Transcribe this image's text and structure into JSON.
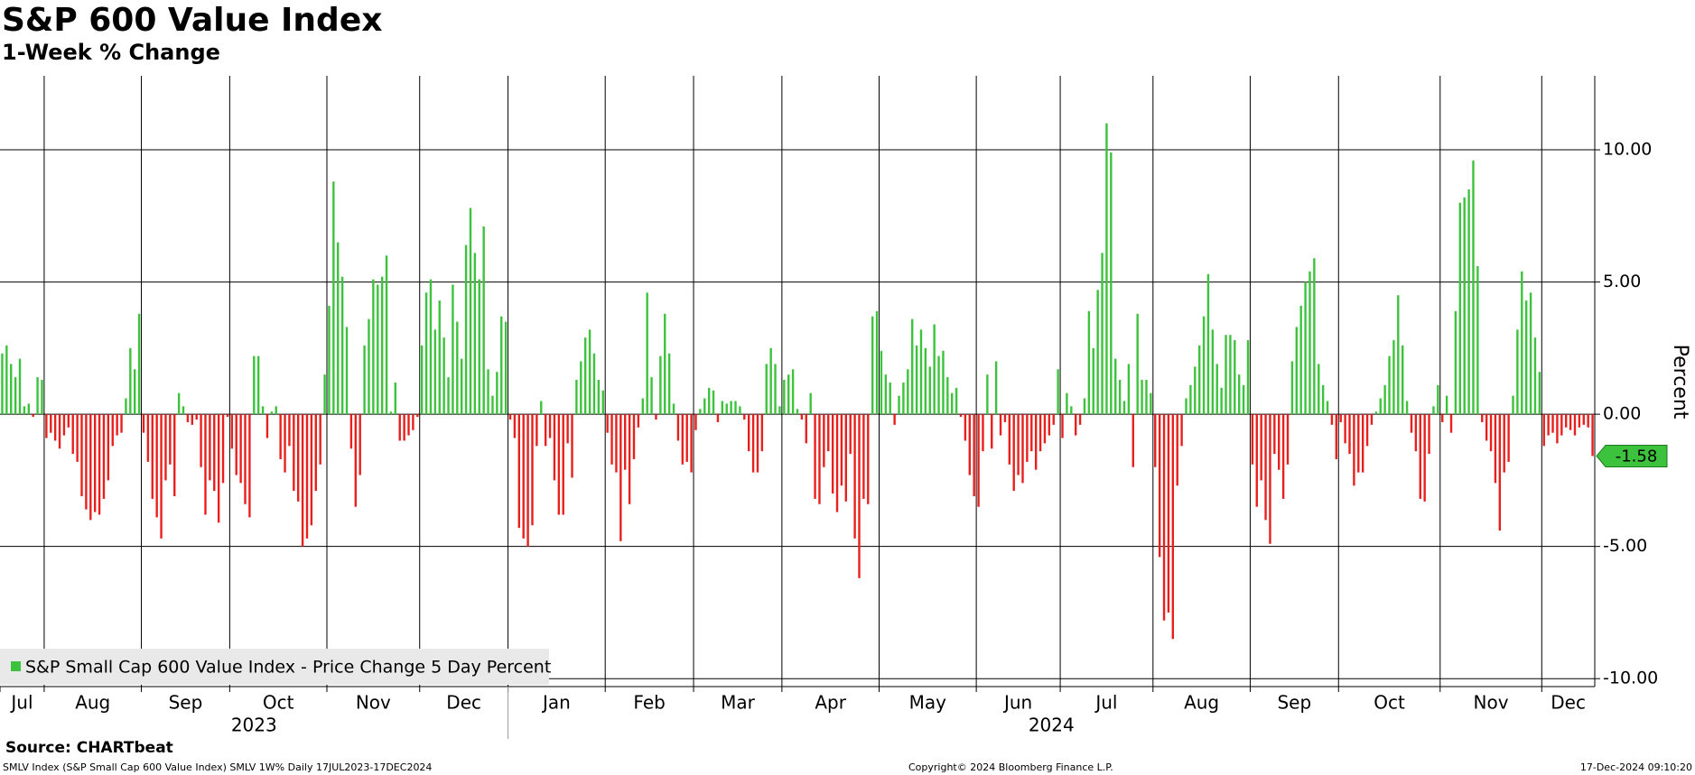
{
  "chart_data": {
    "type": "bar",
    "title": "S&P 600 Value Index",
    "subtitle": "1-Week % Change",
    "y_label": "Percent",
    "legend": "S&P Small Cap 600 Value Index - Price Change 5 Day Percent",
    "legend_position": "lower left",
    "source": "Source: CHARTbeat",
    "footer_left": "SMLV Index (S&P Small Cap 600 Value Index) SMLV 1W% Daily 17JUL2023-17DEC2024",
    "footer_center": "Copyright© 2024 Bloomberg Finance L.P.",
    "footer_right": "17-Dec-2024 09:10:20",
    "positive_color": "#3cc23c",
    "negative_color": "#e8201d",
    "grid": true,
    "last_value_label": "-1.58",
    "xlim": [
      0,
      361
    ],
    "xticks": [
      {
        "value": 0,
        "label": "Jul"
      },
      {
        "value": 10,
        "label": "Aug"
      },
      {
        "value": 32,
        "label": "Sep"
      },
      {
        "value": 52,
        "label": "Oct"
      },
      {
        "value": 74,
        "label": "Nov"
      },
      {
        "value": 95,
        "label": "Dec"
      },
      {
        "value": 115,
        "label": "Jan"
      },
      {
        "value": 137,
        "label": "Feb"
      },
      {
        "value": 157,
        "label": "Mar"
      },
      {
        "value": 177,
        "label": "Apr"
      },
      {
        "value": 199,
        "label": "May"
      },
      {
        "value": 221,
        "label": "Jun"
      },
      {
        "value": 240,
        "label": "Jul"
      },
      {
        "value": 261,
        "label": "Aug"
      },
      {
        "value": 283,
        "label": "Sep"
      },
      {
        "value": 303,
        "label": "Oct"
      },
      {
        "value": 326,
        "label": "Nov"
      },
      {
        "value": 349,
        "label": "Dec"
      }
    ],
    "years": [
      {
        "value": 0,
        "label": "2023"
      },
      {
        "value": 115,
        "label": "2024"
      }
    ],
    "ylim": [
      -10.3,
      12.8
    ],
    "yticks": [
      {
        "value": 10,
        "label": "10.00"
      },
      {
        "value": 5,
        "label": "5.00"
      },
      {
        "value": 0,
        "label": "0.00"
      },
      {
        "value": -5,
        "label": "-5.00"
      },
      {
        "value": -10,
        "label": "-10.00"
      }
    ],
    "values": [
      2.3,
      2.6,
      1.9,
      1.4,
      2.1,
      0.3,
      0.4,
      -0.1,
      1.4,
      1.3,
      -0.9,
      -0.7,
      -1,
      -1.3,
      -0.8,
      -0.5,
      -1.5,
      -1.8,
      -3.1,
      -3.6,
      -4,
      -3.7,
      -3.8,
      -3.2,
      -2.5,
      -1.2,
      -0.8,
      -0.7,
      0.6,
      2.5,
      1.7,
      3.8,
      -0.7,
      -1.8,
      -3.2,
      -3.9,
      -4.7,
      -2.5,
      -1.9,
      -3.1,
      0.8,
      0.3,
      -0.3,
      -0.4,
      -0.2,
      -2,
      -3.8,
      -2.5,
      -2.9,
      -4.1,
      -2.6,
      -0.1,
      -1.3,
      -2.3,
      -2.6,
      -3.4,
      -3.9,
      2.2,
      2.2,
      0.3,
      -0.9,
      0.1,
      0.3,
      -1.7,
      -2.2,
      -1.2,
      -2.9,
      -3.3,
      -5,
      -4.7,
      -4.2,
      -2.9,
      -1.9,
      1.5,
      4.1,
      8.8,
      6.5,
      5.2,
      3.3,
      -1.3,
      -3.5,
      -2.3,
      2.6,
      3.6,
      5.1,
      4.9,
      5.2,
      6,
      0.1,
      1.2,
      -1,
      -1,
      -0.8,
      -0.6,
      -0.1,
      2.6,
      4.6,
      5.1,
      3.2,
      4.3,
      2.9,
      1.4,
      4.9,
      3.5,
      2.1,
      6.4,
      7.8,
      6.1,
      5.1,
      7.1,
      1.7,
      0.7,
      1.6,
      3.7,
      3.5,
      -0.2,
      -0.9,
      -4.3,
      -4.7,
      -5,
      -4.2,
      -1.2,
      0.5,
      -1.2,
      -0.9,
      -2.5,
      -3.8,
      -3.8,
      -1.1,
      -2.4,
      1.3,
      2,
      2.9,
      3.2,
      2.3,
      1.3,
      0.9,
      -0.7,
      -1.9,
      -2.2,
      -4.8,
      -2.1,
      -3.4,
      -1.7,
      -0.5,
      0.6,
      4.6,
      1.4,
      -0.2,
      2.2,
      3.8,
      2.3,
      0.4,
      -1,
      -1.9,
      -1.8,
      -2.2,
      -0.6,
      0.2,
      0.6,
      1,
      0.9,
      -0.3,
      0.5,
      0.4,
      0.5,
      0.5,
      0.3,
      -0.2,
      -1.4,
      -2.2,
      -2.2,
      -1.4,
      1.9,
      2.5,
      1.9,
      0.3,
      1.3,
      1.5,
      1.7,
      0.2,
      -0.2,
      -1.1,
      0.8,
      -3.2,
      -3.4,
      -2,
      -1.4,
      -3,
      -3.7,
      -2.7,
      -3.3,
      -1.5,
      -4.7,
      -6.2,
      -3.2,
      -3.4,
      3.7,
      3.9,
      2.4,
      1.5,
      1.2,
      -0.4,
      0.7,
      1.2,
      1.7,
      3.6,
      2.6,
      3.2,
      2.5,
      1.8,
      3.4,
      2.2,
      2.4,
      1.4,
      0.8,
      1,
      -0.1,
      -1,
      -2.3,
      -3.1,
      -3.5,
      -1.4,
      1.5,
      -1.3,
      2,
      -0.8,
      -0.3,
      -1.9,
      -2.9,
      -2.3,
      -2.6,
      -1.8,
      -1.4,
      -2.1,
      -1.4,
      -1.1,
      -0.8,
      -0.4,
      1.7,
      -0.9,
      0.8,
      0.3,
      -0.8,
      -0.4,
      0.6,
      3.9,
      2.5,
      4.7,
      6.1,
      11,
      9.9,
      2.1,
      1.3,
      0.5,
      1.9,
      -2,
      3.8,
      1.3,
      1.3,
      0.8,
      -2,
      -5.4,
      -7.8,
      -7.5,
      -8.5,
      -2.7,
      -1.2,
      0.6,
      1.1,
      1.8,
      2.6,
      3.7,
      5.3,
      3.2,
      1.9,
      1,
      3,
      3,
      2.8,
      1.5,
      1.1,
      2.8,
      -1.9,
      -3.5,
      -2.5,
      -4,
      -4.9,
      -1.5,
      -2.1,
      -3.2,
      -1.9,
      2,
      3.3,
      4.1,
      5,
      5.4,
      5.9,
      1.9,
      1.1,
      0.5,
      -0.4,
      -1.7,
      -0.3,
      -1.1,
      -1.5,
      -2.7,
      -2.2,
      -2.2,
      -1.2,
      -0.4,
      0.1,
      0.6,
      1.1,
      2.2,
      2.8,
      4.5,
      2.6,
      0.5,
      -0.7,
      -1.4,
      -3.2,
      -3.3,
      -1.5,
      0.3,
      1.1,
      -0.3,
      0.7,
      -0.7,
      3.9,
      8,
      8.2,
      8.5,
      9.6,
      5.6,
      -0.3,
      -1,
      -1.4,
      -2.6,
      -4.4,
      -2.2,
      -1.8,
      0.7,
      3.2,
      5.4,
      4.3,
      4.6,
      2.9,
      1.6,
      -1.2,
      -0.8,
      -0.7,
      -1.1,
      -0.8,
      -0.5,
      -0.6,
      -0.8,
      -0.5,
      -0.4,
      -0.5,
      -1.58
    ]
  }
}
